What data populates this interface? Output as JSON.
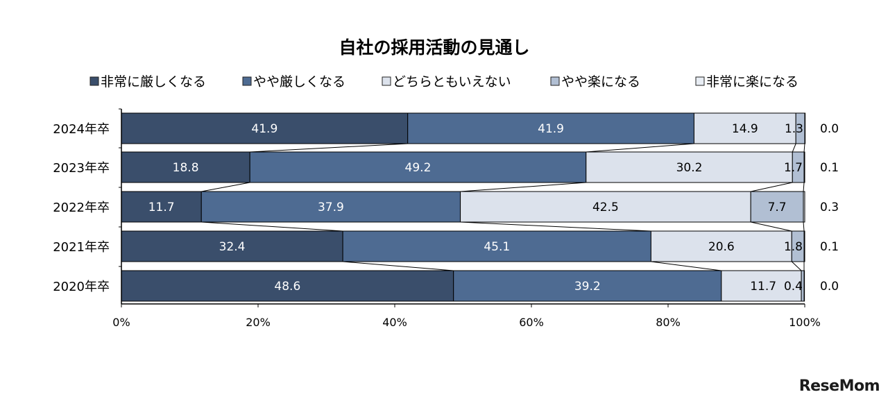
{
  "chart_data": {
    "type": "bar",
    "orientation": "horizontal-stacked-100",
    "title": "自社の採用活動の見通し",
    "categories": [
      "2024年卒",
      "2023年卒",
      "2022年卒",
      "2021年卒",
      "2020年卒"
    ],
    "series": [
      {
        "name": "非常に厳しくなる",
        "color": "#3a4e6b",
        "values": [
          41.9,
          18.8,
          11.7,
          32.4,
          48.6
        ]
      },
      {
        "name": "やや厳しくなる",
        "color": "#4e6b92",
        "values": [
          41.9,
          49.2,
          37.9,
          45.1,
          39.2
        ]
      },
      {
        "name": "どちらともいえない",
        "color": "#dce2ec",
        "values": [
          14.9,
          30.2,
          42.5,
          20.6,
          11.7
        ]
      },
      {
        "name": "やや楽になる",
        "color": "#b1bfd3",
        "values": [
          1.3,
          1.7,
          7.7,
          1.8,
          0.4
        ]
      },
      {
        "name": "非常に楽になる",
        "color": "#e8edf4",
        "values": [
          0.0,
          0.1,
          0.3,
          0.1,
          0.0
        ]
      }
    ],
    "x_ticks": [
      "0%",
      "20%",
      "40%",
      "60%",
      "80%",
      "100%"
    ],
    "xlim": [
      0,
      100
    ],
    "grid": false,
    "legend_position": "top",
    "series_lines": true
  },
  "watermark": "ReseMom"
}
